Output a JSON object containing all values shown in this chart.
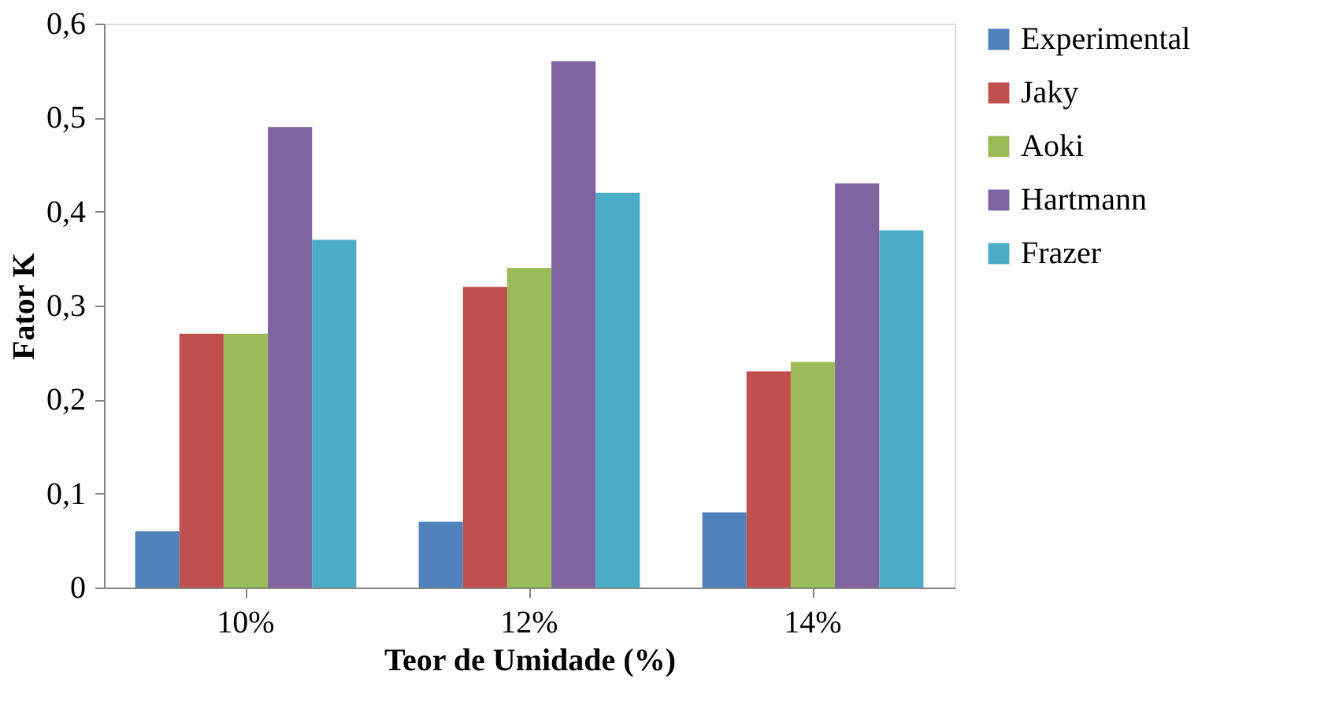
{
  "chart_data": {
    "type": "bar",
    "xlabel": "Teor de Umidade (%)",
    "ylabel": "Fator K",
    "categories": [
      "10%",
      "12%",
      "14%"
    ],
    "series": [
      {
        "name": "Experimental",
        "color": "#4f81bd",
        "values": [
          0.06,
          0.07,
          0.08
        ]
      },
      {
        "name": "Jaky",
        "color": "#c0504d",
        "values": [
          0.27,
          0.32,
          0.23
        ]
      },
      {
        "name": "Aoki",
        "color": "#9bbb59",
        "values": [
          0.27,
          0.34,
          0.24
        ]
      },
      {
        "name": "Hartmann",
        "color": "#8064a2",
        "values": [
          0.49,
          0.56,
          0.43
        ]
      },
      {
        "name": "Frazer",
        "color": "#4bacc6",
        "values": [
          0.37,
          0.42,
          0.38
        ]
      }
    ],
    "ylim": [
      0,
      0.6
    ],
    "yticks": [
      0,
      {
        "value": 0.1,
        "label": "0,1"
      },
      {
        "value": 0.2,
        "label": "0,2"
      },
      {
        "value": 0.3,
        "label": "0,3"
      },
      {
        "value": 0.4,
        "label": "0,4"
      },
      {
        "value": 0.5,
        "label": "0,5"
      },
      {
        "value": 0.6,
        "label": "0,6"
      }
    ],
    "grid": false,
    "legend": "right"
  }
}
